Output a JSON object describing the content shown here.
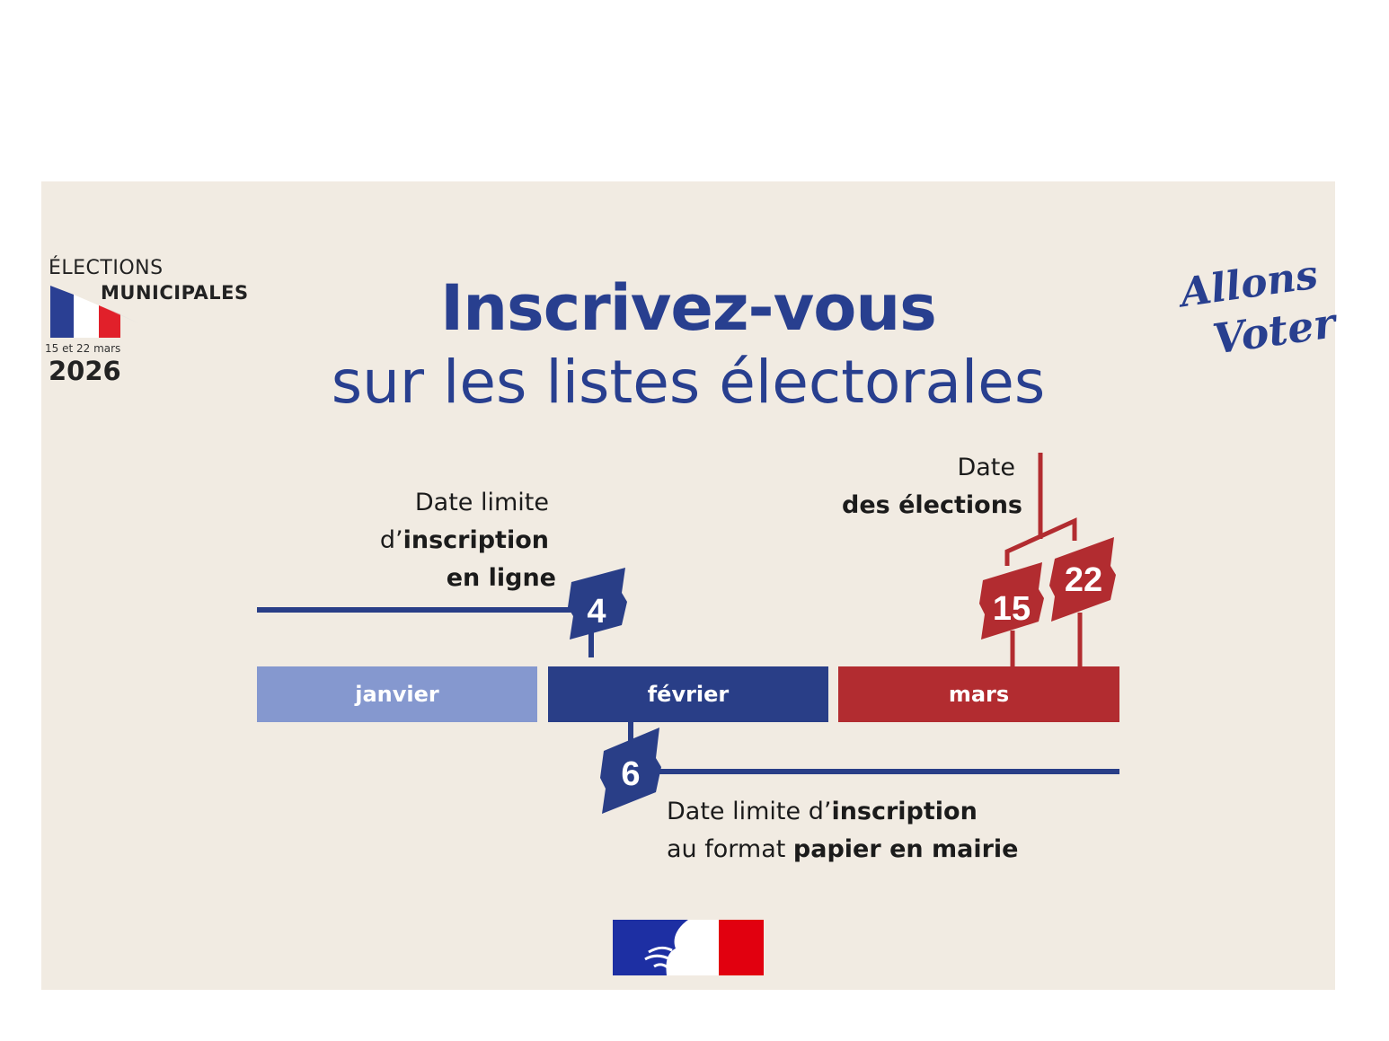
{
  "logo": {
    "elections": "ÉLECTIONS",
    "municipales": "MUNICIPALES",
    "dates": "15 et 22 mars",
    "year": "2026"
  },
  "title": "Inscrivez-vous",
  "subtitle": "sur les listes électorales",
  "slogan": "Allons Voter!",
  "months": [
    "janvier",
    "février",
    "mars"
  ],
  "deadline_online": {
    "day": "4",
    "line1": "Date limite",
    "line2_prefix": "d’",
    "line2_bold": "inscription",
    "line3_bold": "en ligne"
  },
  "election_dates": {
    "line1": "Date",
    "line2_bold": "des élections",
    "round1": "15",
    "round2": "22"
  },
  "deadline_paper": {
    "day": "6",
    "line1_prefix": "Date limite d’",
    "line1_bold": "inscription",
    "line2_prefix": "au format ",
    "line2_bold": "papier en mairie"
  },
  "colors": {
    "background": "#f1ebe2",
    "blue": "#293e87",
    "light_blue": "#8598cf",
    "red": "#b22c30",
    "title_blue": "#283f8f"
  }
}
